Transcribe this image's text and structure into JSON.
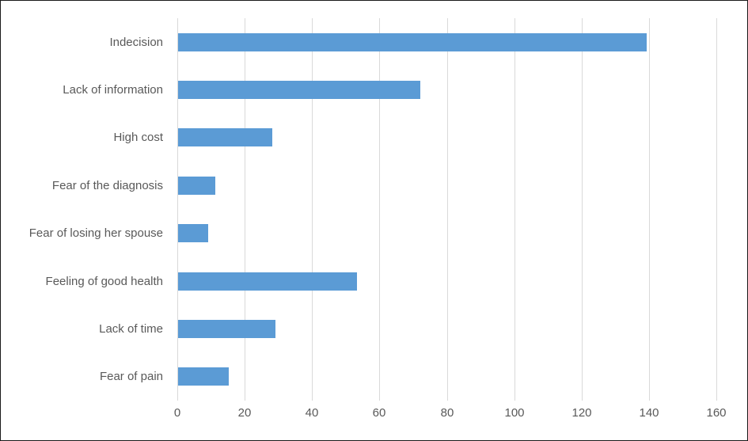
{
  "chart_data": {
    "type": "bar",
    "orientation": "horizontal",
    "title": "",
    "xlabel": "",
    "ylabel": "",
    "categories": [
      "Indecision",
      "Lack of information",
      "High cost",
      "Fear of the diagnosis",
      "Fear of losing her spouse",
      "Feeling of good health",
      "Lack of time",
      "Fear of pain"
    ],
    "values": [
      139,
      72,
      28,
      11,
      9,
      53,
      29,
      15
    ],
    "xlim": [
      0,
      160
    ],
    "xticks": [
      0,
      20,
      40,
      60,
      80,
      100,
      120,
      140,
      160
    ],
    "grid": true,
    "legend": "none",
    "colors": {
      "bar": "#5b9bd5",
      "gridline": "#d9d9d9",
      "text": "#595959",
      "background": "#ffffff",
      "frame_border": "#1a1a1a"
    }
  }
}
